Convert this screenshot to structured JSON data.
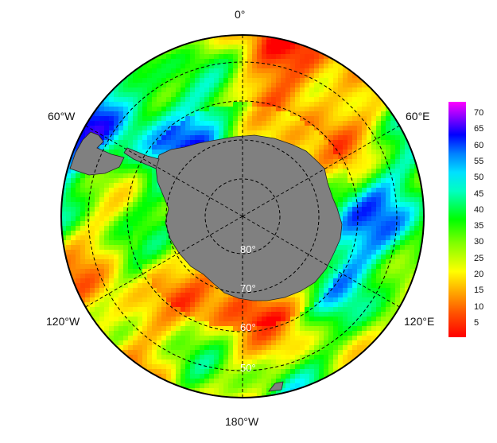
{
  "map": {
    "projection": "south-polar stereographic",
    "longitude_labels": {
      "top": "0°",
      "upper_left": "60°W",
      "upper_right": "60°E",
      "lower_left": "120°W",
      "lower_right": "120°E",
      "bottom": "180°W"
    },
    "latitude_labels": [
      "80°",
      "70°",
      "60°",
      "50°"
    ],
    "land_color": "#808080",
    "gridline_color": "#000000"
  },
  "colorbar": {
    "ticks": [
      "70",
      "65",
      "60",
      "55",
      "50",
      "45",
      "40",
      "35",
      "30",
      "25",
      "20",
      "15",
      "10",
      "5"
    ],
    "range": [
      0,
      75
    ],
    "colors": [
      "#ff0000",
      "#ff8000",
      "#ffff00",
      "#00ff00",
      "#00ffff",
      "#0000ff",
      "#ff00ff"
    ]
  }
}
